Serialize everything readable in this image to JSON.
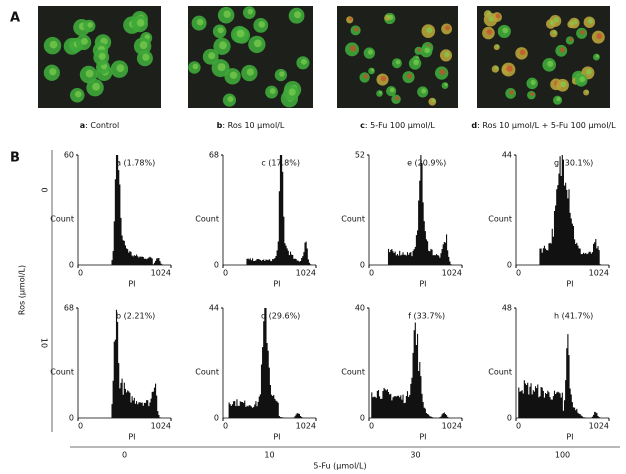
{
  "panel_a": {
    "label": "A",
    "images": [
      {
        "letter": "a",
        "caption": ": Control"
      },
      {
        "letter": "b",
        "caption": ": Ros 10 μmol/L"
      },
      {
        "letter": "c",
        "caption": ": 5-Fu 100 μmol/L"
      },
      {
        "letter": "d",
        "caption": ": Ros 10 μmol/L + 5-Fu 100 μmol/L"
      }
    ]
  },
  "panel_b": {
    "label": "B",
    "y_axis_title": "Ros (μmol/L)",
    "x_axis_title": "5-Fu (μmol/L)",
    "rows": [
      "0",
      "10"
    ],
    "columns": [
      "0",
      "10",
      "30",
      "100"
    ],
    "plots": [
      {
        "label": "a (1.78%)",
        "ymax": 60,
        "ymin": 0,
        "xticks": [
          0,
          1024
        ],
        "xlabel": "PI",
        "ylabel": "Count"
      },
      {
        "label": "c (17.8%)",
        "ymax": 68,
        "ymin": 0,
        "xticks": [
          0,
          1024
        ],
        "xlabel": "PI",
        "ylabel": "Count"
      },
      {
        "label": "e (20.9%)",
        "ymax": 52,
        "ymin": 0,
        "xticks": [
          0,
          1024
        ],
        "xlabel": "PI",
        "ylabel": "Count"
      },
      {
        "label": "g (30.1%)",
        "ymax": 44,
        "ymin": 0,
        "xticks": [
          0,
          1024
        ],
        "xlabel": "PI",
        "ylabel": "Count"
      },
      {
        "label": "b (2.21%)",
        "ymax": 68,
        "ymin": 0,
        "xticks": [
          0,
          1024
        ],
        "xlabel": "PI",
        "ylabel": "Count"
      },
      {
        "label": "d (29.6%)",
        "ymax": 44,
        "ymin": 0,
        "xticks": [
          0,
          1024
        ],
        "xlabel": "PI",
        "ylabel": "Count"
      },
      {
        "label": "f (33.7%)",
        "ymax": 40,
        "ymin": 0,
        "xticks": [
          0,
          1024
        ],
        "xlabel": "PI",
        "ylabel": "Count"
      },
      {
        "label": "h (41.7%)",
        "ymax": 48,
        "ymin": 0,
        "xticks": [
          0,
          1024
        ],
        "xlabel": "PI",
        "ylabel": "Count"
      }
    ]
  }
}
